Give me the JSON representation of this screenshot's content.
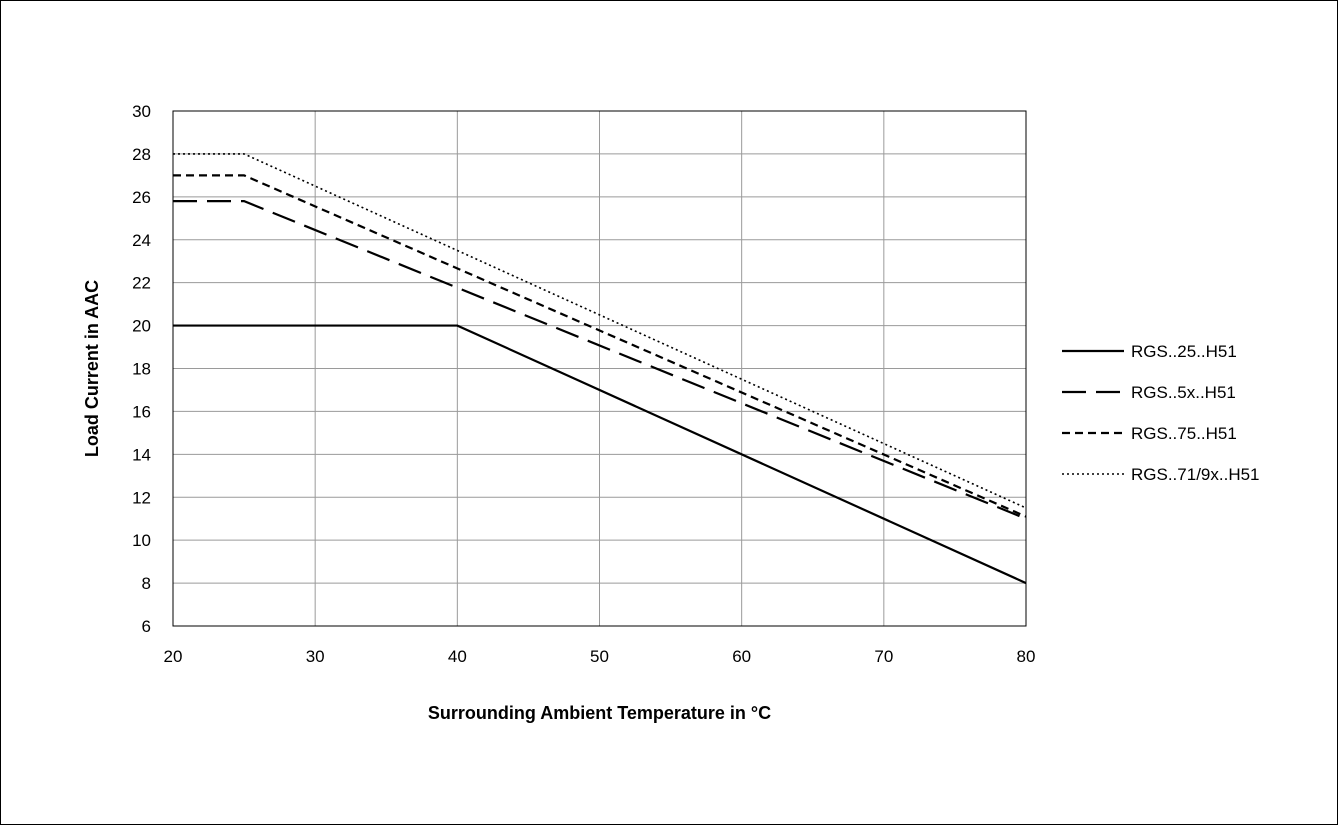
{
  "chart_data": {
    "type": "line",
    "xlabel": "Surrounding Ambient Temperature in °C",
    "ylabel": "Load Current in AAC",
    "xlim": [
      20,
      80
    ],
    "ylim": [
      6,
      30
    ],
    "x_ticks": [
      20,
      30,
      40,
      50,
      60,
      70,
      80
    ],
    "y_ticks": [
      6,
      8,
      10,
      12,
      14,
      16,
      18,
      20,
      22,
      24,
      26,
      28,
      30
    ],
    "grid": true,
    "legend_position": "right",
    "series": [
      {
        "name": "RGS..25..H51",
        "style": "solid",
        "color": "#000000",
        "points": [
          [
            20,
            20
          ],
          [
            40,
            20
          ],
          [
            80,
            8
          ]
        ]
      },
      {
        "name": "RGS..5x..H51",
        "style": "long-dash",
        "color": "#000000",
        "points": [
          [
            20,
            25.8
          ],
          [
            25,
            25.8
          ],
          [
            80,
            11
          ]
        ]
      },
      {
        "name": "RGS..75..H51",
        "style": "dash",
        "color": "#000000",
        "points": [
          [
            20,
            27
          ],
          [
            25,
            27
          ],
          [
            80,
            11.1
          ]
        ]
      },
      {
        "name": "RGS..71/9x..H51",
        "style": "dot",
        "color": "#000000",
        "points": [
          [
            20,
            28
          ],
          [
            25,
            28
          ],
          [
            80,
            11.5
          ]
        ]
      }
    ]
  }
}
